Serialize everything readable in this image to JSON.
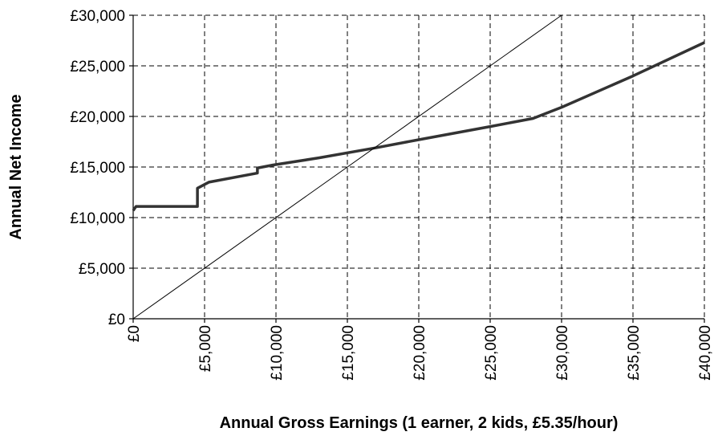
{
  "chart_data": {
    "type": "line",
    "xlabel": "Annual Gross Earnings (1 earner, 2 kids, £5.35/hour)",
    "ylabel": "Annual Net Income",
    "series": [
      {
        "color": "#333333",
        "width": 3.5,
        "x": [
          0,
          200,
          4500,
          4500,
          5300,
          8700,
          8700,
          9800,
          13000,
          17000,
          20000,
          25000,
          28000,
          30000,
          35000,
          40000
        ],
        "values": [
          10700,
          11100,
          11100,
          12900,
          13500,
          14400,
          14900,
          15200,
          15900,
          16900,
          17700,
          19000,
          19800,
          20900,
          24000,
          27300
        ]
      },
      {
        "color": "#000000",
        "width": 1,
        "x": [
          0,
          30000
        ],
        "values": [
          0,
          30000
        ]
      }
    ],
    "xlim": [
      0,
      40000
    ],
    "ylim": [
      0,
      30000
    ],
    "xticks": [
      {
        "value": 0,
        "label": "£0"
      },
      {
        "value": 5000,
        "label": "£5,000"
      },
      {
        "value": 10000,
        "label": "£10,000"
      },
      {
        "value": 15000,
        "label": "£15,000"
      },
      {
        "value": 20000,
        "label": "£20,000"
      },
      {
        "value": 25000,
        "label": "£25,000"
      },
      {
        "value": 30000,
        "label": "£30,000"
      },
      {
        "value": 35000,
        "label": "£35,000"
      },
      {
        "value": 40000,
        "label": "£40,000"
      }
    ],
    "yticks": [
      {
        "value": 0,
        "label": "£0"
      },
      {
        "value": 5000,
        "label": "£5,000"
      },
      {
        "value": 10000,
        "label": "£10,000"
      },
      {
        "value": 15000,
        "label": "£15,000"
      },
      {
        "value": 20000,
        "label": "£20,000"
      },
      {
        "value": 25000,
        "label": "£25,000"
      },
      {
        "value": 30000,
        "label": "£30,000"
      }
    ],
    "grid": true
  }
}
